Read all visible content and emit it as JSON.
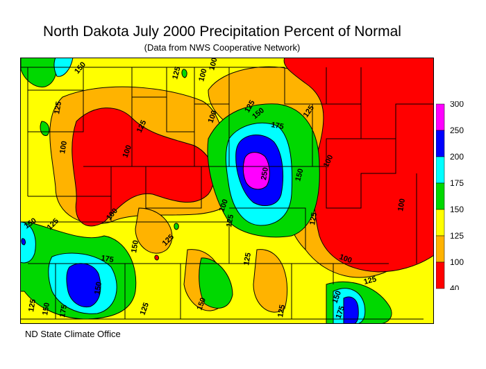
{
  "title": "North Dakota July 2000 Precipitation Percent of Normal",
  "subtitle": "(Data from NWS Cooperative Network)",
  "credit": "ND State Climate Office",
  "legend": {
    "labels": [
      "300",
      "250",
      "200",
      "175",
      "150",
      "125",
      "100",
      "40"
    ],
    "colors": [
      "#ff00ff",
      "#0000ff",
      "#00ffff",
      "#00d800",
      "#ffff00",
      "#ffb300",
      "#ff0000"
    ]
  },
  "contour_labels": [
    "100",
    "125",
    "150",
    "175",
    "250"
  ]
}
